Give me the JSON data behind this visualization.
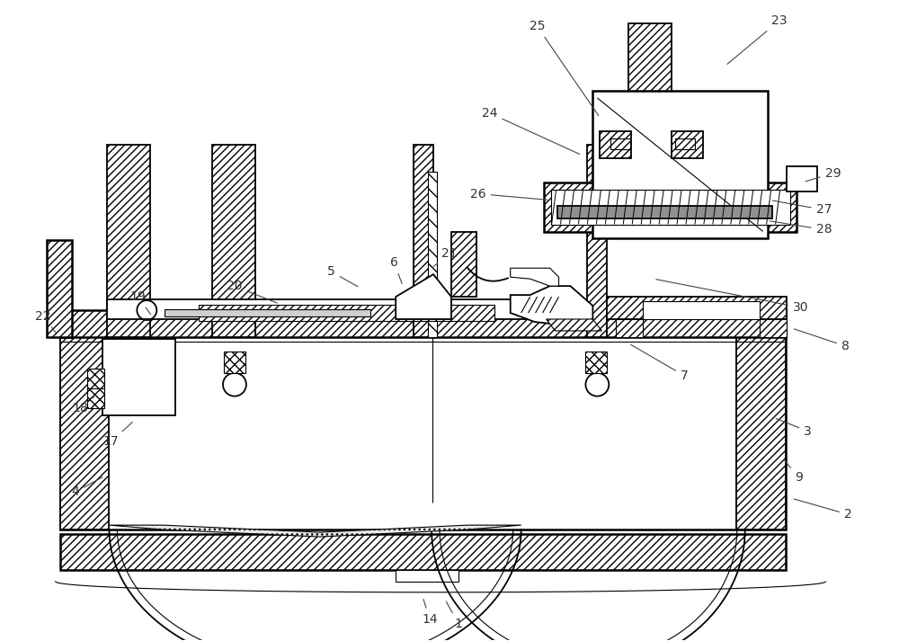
{
  "bg_color": "#ffffff",
  "line_color": "#000000",
  "label_color": "#333333",
  "fontsize": 10,
  "labels": [
    [
      "1",
      510,
      695,
      495,
      668
    ],
    [
      "2",
      945,
      573,
      882,
      555
    ],
    [
      "3",
      900,
      480,
      862,
      465
    ],
    [
      "4",
      82,
      548,
      115,
      530
    ],
    [
      "5",
      368,
      302,
      400,
      320
    ],
    [
      "6",
      438,
      292,
      448,
      318
    ],
    [
      "7",
      762,
      418,
      700,
      382
    ],
    [
      "8",
      942,
      385,
      882,
      365
    ],
    [
      "9",
      890,
      532,
      872,
      510
    ],
    [
      "14",
      478,
      690,
      470,
      665
    ],
    [
      "17",
      122,
      492,
      148,
      468
    ],
    [
      "18",
      88,
      454,
      103,
      442
    ],
    [
      "19",
      152,
      330,
      168,
      352
    ],
    [
      "20",
      260,
      318,
      310,
      338
    ],
    [
      "21",
      500,
      282,
      480,
      298
    ],
    [
      "22",
      46,
      352,
      62,
      372
    ],
    [
      "23",
      868,
      22,
      808,
      72
    ],
    [
      "24",
      545,
      125,
      648,
      172
    ],
    [
      "25",
      598,
      28,
      668,
      130
    ],
    [
      "26",
      532,
      215,
      612,
      222
    ],
    [
      "27",
      918,
      233,
      858,
      222
    ],
    [
      "28",
      918,
      255,
      855,
      245
    ],
    [
      "29",
      928,
      192,
      895,
      202
    ],
    [
      "30",
      892,
      342,
      728,
      310
    ]
  ]
}
